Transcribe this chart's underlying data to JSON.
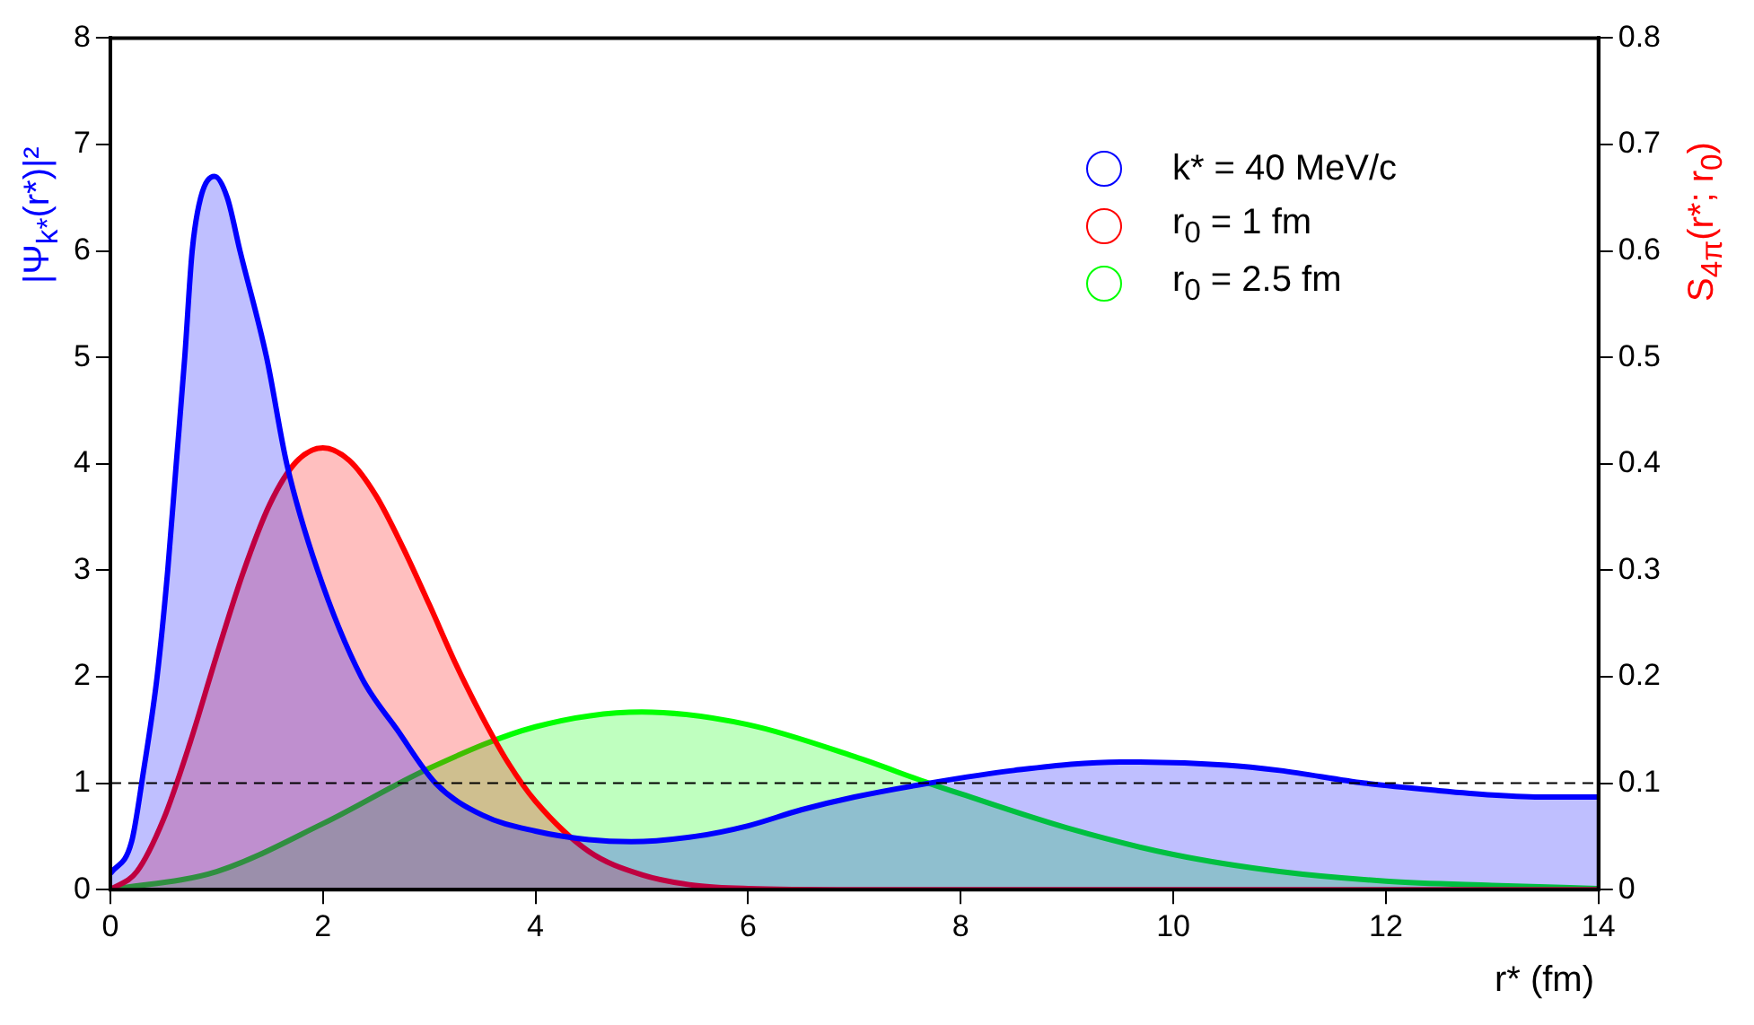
{
  "chart_data": {
    "type": "area",
    "xlabel": "r* (fm)",
    "ylabel": "|Ψ$_{k*}$(r*)|²",
    "y2label": "S$_{4π}$(r*; r$_{0}$)",
    "xlim": [
      0,
      14
    ],
    "xticks": [
      0,
      2,
      4,
      6,
      8,
      10,
      12,
      14
    ],
    "ylim": [
      0,
      8
    ],
    "yticks": [
      0,
      1,
      2,
      3,
      4,
      5,
      6,
      7,
      8
    ],
    "y2lim": [
      0,
      0.8
    ],
    "y2ticks": [
      0,
      0.1,
      0.2,
      0.3,
      0.4,
      0.5,
      0.6,
      0.7,
      0.8
    ],
    "grid": false,
    "legend": "top right",
    "ref_lines": [
      {
        "axis": "y",
        "value": 1,
        "line_style": "dashed",
        "color": "#000000"
      }
    ],
    "series": [
      {
        "name": "k* = 40 MeV/c",
        "color": "#0000ff",
        "x": [
          0,
          0.2,
          0.31,
          0.44,
          0.54,
          0.62,
          0.7,
          0.77,
          0.85,
          0.98,
          1.1,
          1.22,
          1.47,
          1.66,
          1.95,
          2.36,
          2.7,
          3.06,
          3.5,
          4,
          4.5,
          4.9,
          5.5,
          6,
          6.5,
          7,
          7.7,
          8.5,
          9.5,
          10.5,
          11,
          11.8,
          12.5,
          13,
          13.5,
          14
        ],
        "values": [
          0.15,
          0.45,
          1.1,
          2,
          3,
          4,
          5,
          6,
          6.5,
          6.7,
          6.5,
          6,
          5,
          4,
          3,
          2,
          1.5,
          1,
          0.7,
          0.55,
          0.47,
          0.45,
          0.5,
          0.6,
          0.75,
          0.87,
          1,
          1.12,
          1.2,
          1.17,
          1.12,
          1,
          0.93,
          0.89,
          0.87,
          0.87
        ]
      },
      {
        "name": "r$_{0}$ = 1 fm",
        "color": "#ff0000",
        "axis": "y2",
        "x": [
          0,
          0.25,
          0.5,
          0.75,
          1,
          1.25,
          1.5,
          1.75,
          2,
          2.25,
          2.5,
          2.75,
          3,
          3.25,
          3.5,
          3.75,
          4,
          4.5,
          5,
          5.5,
          6,
          7,
          14
        ],
        "values": [
          0,
          0.017,
          0.066,
          0.138,
          0.22,
          0.298,
          0.362,
          0.402,
          0.415,
          0.403,
          0.37,
          0.322,
          0.268,
          0.212,
          0.162,
          0.118,
          0.083,
          0.036,
          0.014,
          0.004,
          0.001,
          0,
          0
        ]
      },
      {
        "name": "r$_{0}$ = 2.5 fm",
        "color": "#00ff00",
        "axis": "y2",
        "x": [
          0,
          1,
          2,
          3,
          4,
          5,
          6,
          7,
          7.7,
          8,
          9,
          10,
          11,
          12,
          13,
          14
        ],
        "values": [
          0,
          0.017,
          0.062,
          0.114,
          0.153,
          0.167,
          0.155,
          0.125,
          0.1,
          0.09,
          0.058,
          0.033,
          0.017,
          0.008,
          0.004,
          0.001
        ]
      }
    ]
  }
}
